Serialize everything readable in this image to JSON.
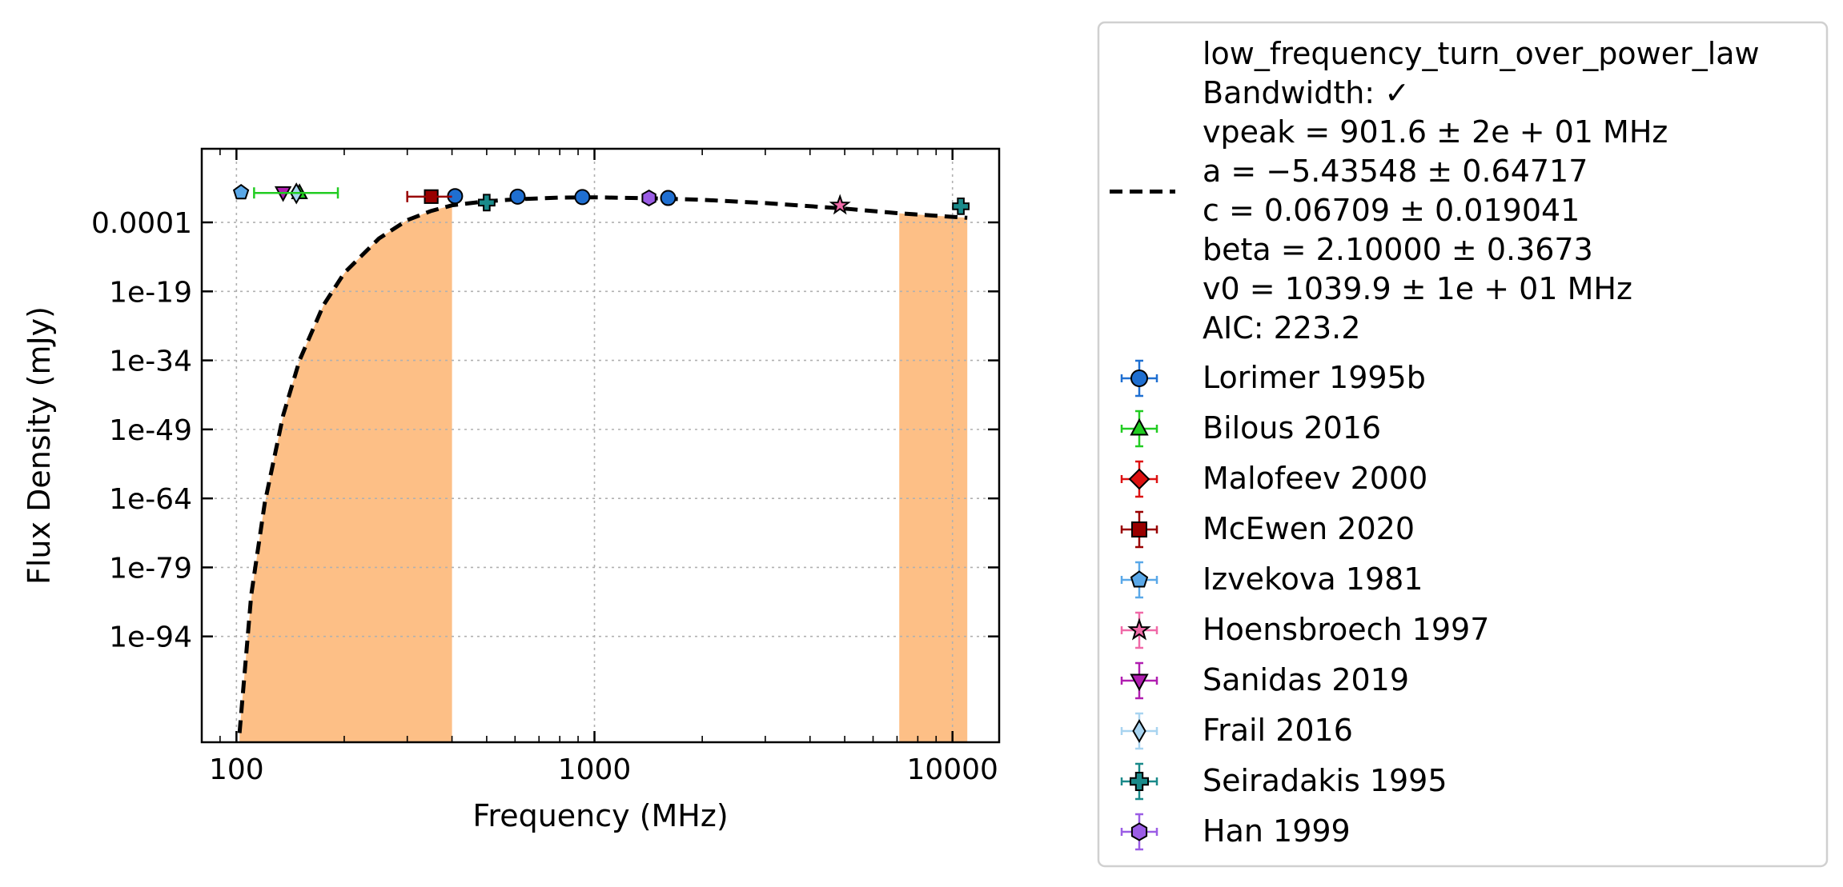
{
  "chart_data": {
    "type": "scatter",
    "xlabel": "Frequency (MHz)",
    "ylabel": "Flux Density (mJy)",
    "x_scale": "log",
    "y_scale": "log",
    "xlim": [
      80,
      13500
    ],
    "ylim_log10": [
      -117,
      12
    ],
    "grid": true,
    "x_ticks": [
      {
        "value": 100,
        "label": "100"
      },
      {
        "value": 1000,
        "label": "1000"
      },
      {
        "value": 10000,
        "label": "10000"
      }
    ],
    "y_ticks": [
      {
        "log10": -4,
        "label": "0.0001"
      },
      {
        "log10": -19,
        "label": "1e-19"
      },
      {
        "log10": -34,
        "label": "1e-34"
      },
      {
        "log10": -49,
        "label": "1e-49"
      },
      {
        "log10": -64,
        "label": "1e-64"
      },
      {
        "log10": -79,
        "label": "1e-79"
      },
      {
        "log10": -94,
        "label": "1e-94"
      }
    ],
    "model": {
      "name": "low_frequency_turn_over_power_law",
      "style": "dashed",
      "color": "#000000",
      "legend_lines": [
        "low_frequency_turn_over_power_law",
        "Bandwidth: ✓",
        "vpeak = 901.6 ± 2e + 01 MHz",
        "a = −5.43548 ± 0.64717",
        "c = 0.06709 ± 0.019041",
        "beta = 2.10000 ± 0.3673",
        "v0 = 1039.9 ± 1e + 01 MHz",
        "AIC: 223.2"
      ],
      "curve": [
        {
          "x": 102,
          "log10_y": -115
        },
        {
          "x": 110,
          "log10_y": -85
        },
        {
          "x": 120,
          "log10_y": -65
        },
        {
          "x": 135,
          "log10_y": -46
        },
        {
          "x": 150,
          "log10_y": -34
        },
        {
          "x": 175,
          "log10_y": -22
        },
        {
          "x": 200,
          "log10_y": -15
        },
        {
          "x": 250,
          "log10_y": -7.5
        },
        {
          "x": 300,
          "log10_y": -3.5
        },
        {
          "x": 350,
          "log10_y": -1.5
        },
        {
          "x": 400,
          "log10_y": -0.3
        },
        {
          "x": 500,
          "log10_y": 0.6
        },
        {
          "x": 600,
          "log10_y": 1.0
        },
        {
          "x": 800,
          "log10_y": 1.4
        },
        {
          "x": 1000,
          "log10_y": 1.45
        },
        {
          "x": 1500,
          "log10_y": 1.2
        },
        {
          "x": 2000,
          "log10_y": 0.9
        },
        {
          "x": 3000,
          "log10_y": 0.2
        },
        {
          "x": 5000,
          "log10_y": -1.0
        },
        {
          "x": 7000,
          "log10_y": -2.0
        },
        {
          "x": 10000,
          "log10_y": -2.8
        },
        {
          "x": 11000,
          "log10_y": -3.0
        }
      ]
    },
    "shaded_regions": [
      {
        "x_start": 102,
        "x_end": 400,
        "color": "#fdbf86"
      },
      {
        "x_start": 7100,
        "x_end": 11000,
        "color": "#fdbf86"
      }
    ],
    "series": [
      {
        "name": "Lorimer 1995b",
        "marker": "circle",
        "color": "#1f6fd1",
        "points": [
          {
            "x": 408,
            "log10_y": 1.7
          },
          {
            "x": 610,
            "log10_y": 1.6
          },
          {
            "x": 925,
            "log10_y": 1.5
          },
          {
            "x": 1606,
            "log10_y": 1.3
          }
        ]
      },
      {
        "name": "Bilous 2016",
        "marker": "triangle-up",
        "color": "#22cc22",
        "points": [
          {
            "x": 150,
            "log10_y": 2.4
          }
        ]
      },
      {
        "name": "Malofeev 2000",
        "marker": "diamond",
        "color": "#dd1111",
        "points": []
      },
      {
        "name": "McEwen 2020",
        "marker": "square",
        "color": "#990000",
        "points": [
          {
            "x": 350,
            "log10_y": 1.6
          }
        ]
      },
      {
        "name": "Izvekova 1981",
        "marker": "pentagon",
        "color": "#5aa8e8",
        "points": [
          {
            "x": 103,
            "log10_y": 2.5
          }
        ]
      },
      {
        "name": "Hoensbroech 1997",
        "marker": "star",
        "color": "#f06aa8",
        "points": [
          {
            "x": 4850,
            "log10_y": -0.3
          }
        ]
      },
      {
        "name": "Sanidas 2019",
        "marker": "triangle-down",
        "color": "#b01eb0",
        "points": [
          {
            "x": 135,
            "log10_y": 2.5
          }
        ]
      },
      {
        "name": "Frail 2016",
        "marker": "thin-diamond",
        "color": "#a8d4f0",
        "points": [
          {
            "x": 147,
            "log10_y": 2.3
          }
        ]
      },
      {
        "name": "Seiradakis 1995",
        "marker": "plus",
        "color": "#1a8a8a",
        "points": [
          {
            "x": 500,
            "log10_y": 0.3
          },
          {
            "x": 10550,
            "log10_y": -0.5
          }
        ]
      },
      {
        "name": "Han 1999",
        "marker": "hexagon",
        "color": "#9b5de5",
        "points": [
          {
            "x": 1420,
            "log10_y": 1.3
          }
        ]
      }
    ]
  }
}
